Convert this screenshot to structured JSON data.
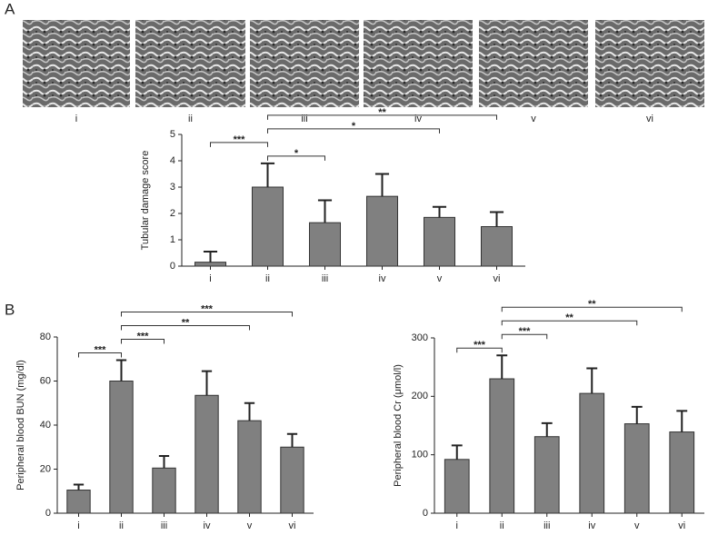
{
  "panels": [
    {
      "label": "A"
    },
    {
      "label": "B"
    }
  ],
  "images": {
    "labels": [
      "i",
      "ii",
      "iii",
      "iv",
      "v",
      "vi"
    ]
  },
  "chart_data": [
    {
      "type": "bar",
      "y_label": "Tubular damage score",
      "categories": [
        "i",
        "ii",
        "iii",
        "iv",
        "v",
        "vi"
      ],
      "values": [
        0.15,
        3.0,
        1.65,
        2.65,
        1.85,
        1.5
      ],
      "errors": [
        0.4,
        0.9,
        0.85,
        0.85,
        0.4,
        0.55
      ],
      "color": "#808080",
      "ylim": [
        0,
        5
      ],
      "yticks": [
        0,
        1,
        2,
        3,
        4,
        5
      ],
      "annotations": [
        {
          "from": "ii",
          "to": "iii",
          "text": "*"
        },
        {
          "from": "i",
          "to": "ii",
          "text": "***"
        },
        {
          "from": "ii",
          "to": "v",
          "text": "*"
        },
        {
          "from": "ii",
          "to": "vi",
          "text": "**"
        }
      ]
    },
    {
      "type": "bar",
      "y_label": "Peripheral blood BUN (mg/dl)",
      "categories": [
        "i",
        "ii",
        "iii",
        "iv",
        "v",
        "vi"
      ],
      "values": [
        10.5,
        60,
        20.5,
        53.5,
        42,
        30
      ],
      "errors": [
        2.5,
        9.5,
        5.5,
        11,
        8,
        6
      ],
      "color": "#808080",
      "ylim": [
        0,
        80
      ],
      "yticks": [
        0,
        20,
        40,
        60,
        80
      ],
      "annotations": [
        {
          "from": "i",
          "to": "ii",
          "text": "***"
        },
        {
          "from": "ii",
          "to": "iii",
          "text": "***"
        },
        {
          "from": "ii",
          "to": "v",
          "text": "**"
        },
        {
          "from": "ii",
          "to": "vi",
          "text": "***"
        }
      ]
    },
    {
      "type": "bar",
      "y_label": "Peripheral blood Cr (μmol/l)",
      "categories": [
        "i",
        "ii",
        "iii",
        "iv",
        "v",
        "vi"
      ],
      "values": [
        92,
        230,
        131,
        205,
        153,
        139
      ],
      "errors": [
        24,
        40,
        23,
        43,
        29,
        36
      ],
      "color": "#808080",
      "ylim": [
        0,
        300
      ],
      "yticks": [
        0,
        100,
        200,
        300
      ],
      "annotations": [
        {
          "from": "i",
          "to": "ii",
          "text": "***"
        },
        {
          "from": "ii",
          "to": "iii",
          "text": "***"
        },
        {
          "from": "ii",
          "to": "v",
          "text": "**"
        },
        {
          "from": "ii",
          "to": "vi",
          "text": "**"
        }
      ]
    }
  ]
}
